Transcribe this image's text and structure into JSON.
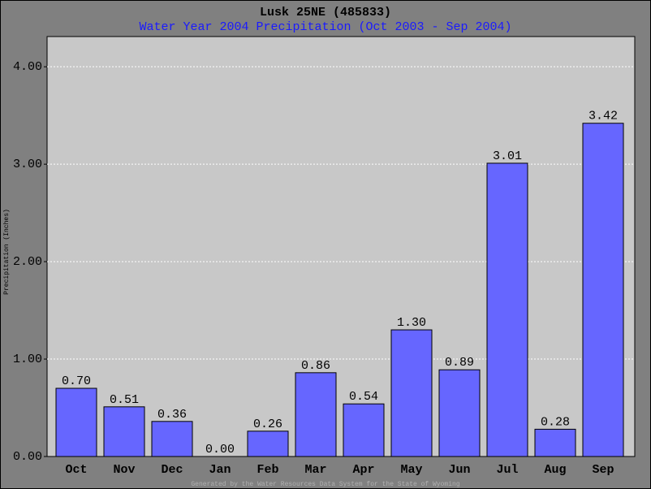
{
  "chart_data": {
    "type": "bar",
    "title": "Lusk 25NE (485833)",
    "subtitle": "Water Year 2004 Precipitation (Oct 2003 - Sep 2004)",
    "y_label": "Precipitation (Inches)",
    "footer": "Generated by the Water Resources Data System for the State of Wyoming",
    "categories": [
      "Oct",
      "Nov",
      "Dec",
      "Jan",
      "Feb",
      "Mar",
      "Apr",
      "May",
      "Jun",
      "Jul",
      "Aug",
      "Sep"
    ],
    "values": [
      0.7,
      0.51,
      0.36,
      0,
      0.26,
      0.86,
      0.54,
      1.3,
      0.89,
      3.01,
      0.28,
      3.42
    ],
    "value_labels": [
      "0.70",
      "0.51",
      "0.36",
      "0.00",
      "0.26",
      "0.86",
      "0.54",
      "1.30",
      "0.89",
      "3.01",
      "0.28",
      "3.42"
    ],
    "color": "#6666ff",
    "ylim": [
      0,
      4.31
    ],
    "yticks": [
      {
        "value": 0,
        "label": "0.00"
      },
      {
        "value": 1,
        "label": "1.00"
      },
      {
        "value": 2,
        "label": "2.00"
      },
      {
        "value": 3,
        "label": "3.00"
      },
      {
        "value": 4,
        "label": "4.00"
      }
    ],
    "grid": true
  }
}
